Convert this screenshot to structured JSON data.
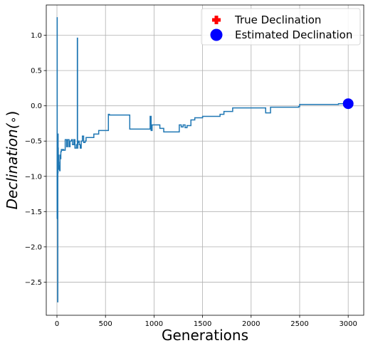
{
  "chart_data": {
    "type": "line",
    "xlabel": "Generations",
    "ylabel_prefix": "Declination(",
    "ylabel_symbol": "∘",
    "ylabel_suffix": ")",
    "xlim": [
      -110,
      3160
    ],
    "ylim": [
      -2.97,
      1.43
    ],
    "xticks": [
      0,
      500,
      1000,
      1500,
      2000,
      2500,
      3000
    ],
    "yticks": [
      1.0,
      0.5,
      0.0,
      -0.5,
      -1.0,
      -1.5,
      -2.0,
      -2.5
    ],
    "ytick_labels": [
      "1.0",
      "0.5",
      "0.0",
      "−0.5",
      "−1.0",
      "−1.5",
      "−2.0",
      "−2.5"
    ],
    "grid": true,
    "legend_position": "top-right",
    "legend": [
      {
        "label": "True Declination",
        "marker": "plus",
        "color": "#ff0000"
      },
      {
        "label": "Estimated Declination",
        "marker": "circle",
        "color": "#0000ff"
      }
    ],
    "series": [
      {
        "color": "#1f77b4",
        "x": [
          0,
          2,
          3,
          5,
          6,
          8,
          9,
          11,
          12,
          14,
          15,
          18,
          20,
          22,
          25,
          28,
          32,
          36,
          40,
          45,
          50,
          60,
          70,
          85,
          100,
          110,
          125,
          135,
          150,
          160,
          175,
          185,
          200,
          210,
          212,
          215,
          222,
          230,
          240,
          250,
          262,
          275,
          290,
          300,
          330,
          380,
          430,
          480,
          530,
          540,
          750,
          760,
          960,
          970,
          980,
          1060,
          1100,
          1160,
          1260,
          1280,
          1300,
          1320,
          1340,
          1380,
          1420,
          1500,
          1560,
          1680,
          1720,
          1800,
          1810,
          2140,
          2150,
          2200,
          2490,
          2500,
          2650,
          2700,
          2850,
          2900,
          3000
        ],
        "y": [
          -1.6,
          1.25,
          -0.6,
          -1.6,
          -0.8,
          -2.78,
          -0.95,
          -0.4,
          -0.6,
          -0.9,
          -0.7,
          -0.8,
          -0.85,
          -0.88,
          -0.9,
          -0.92,
          -0.7,
          -0.75,
          -0.65,
          -0.62,
          -0.63,
          -0.62,
          -0.63,
          -0.48,
          -0.58,
          -0.48,
          -0.58,
          -0.5,
          -0.48,
          -0.55,
          -0.48,
          -0.6,
          -0.55,
          0.96,
          -0.6,
          -0.52,
          -0.5,
          -0.55,
          -0.6,
          -0.5,
          -0.43,
          -0.52,
          -0.5,
          -0.45,
          -0.45,
          -0.4,
          -0.35,
          -0.35,
          -0.12,
          -0.13,
          -0.33,
          -0.33,
          -0.15,
          -0.35,
          -0.27,
          -0.32,
          -0.37,
          -0.37,
          -0.27,
          -0.3,
          -0.27,
          -0.31,
          -0.28,
          -0.2,
          -0.17,
          -0.15,
          -0.15,
          -0.12,
          -0.08,
          -0.08,
          -0.03,
          -0.03,
          -0.1,
          -0.02,
          -0.01,
          0.02,
          0.02,
          0.02,
          0.02,
          0.03,
          0.03
        ]
      }
    ],
    "estimated_point": {
      "x": 3000,
      "y": 0.03
    }
  }
}
